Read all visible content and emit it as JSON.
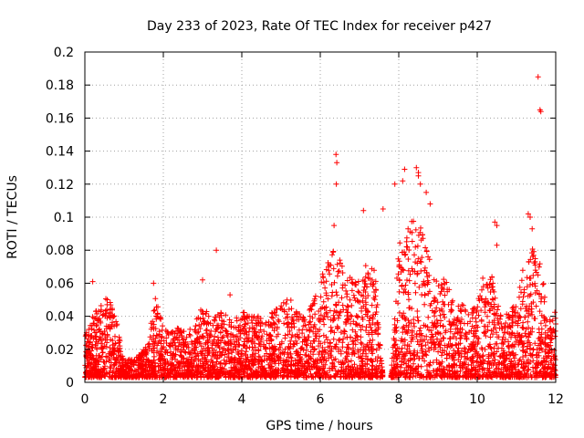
{
  "chart_data": {
    "type": "scatter",
    "title": "Day 233 of 2023, Rate Of TEC Index for receiver p427",
    "xlabel": "GPS time / hours",
    "ylabel": "ROTI / TECUs",
    "xlim": [
      0,
      12
    ],
    "ylim": [
      0,
      0.2
    ],
    "grid": true,
    "marker": "+",
    "color": "#ff0000",
    "x_ticks": [
      0,
      2,
      4,
      6,
      8,
      10,
      12
    ],
    "x_tick_labels": [
      "0",
      "2",
      "4",
      "6",
      "8",
      "10",
      "12"
    ],
    "y_ticks": [
      0,
      0.02,
      0.04,
      0.06,
      0.08,
      0.1,
      0.12,
      0.14,
      0.16,
      0.18,
      0.2
    ],
    "y_tick_labels": [
      "0",
      "0.02",
      "0.04",
      "0.06",
      "0.08",
      "0.1",
      "0.12",
      "0.14",
      "0.16",
      "0.18",
      "0.2"
    ],
    "envelope_hours": [
      0,
      0.2,
      0.4,
      0.6,
      0.8,
      1.0,
      1.2,
      1.4,
      1.6,
      1.8,
      2.0,
      2.2,
      2.4,
      2.6,
      2.8,
      3.0,
      3.2,
      3.4,
      3.6,
      3.8,
      4.0,
      4.2,
      4.4,
      4.6,
      4.8,
      5.0,
      5.2,
      5.4,
      5.6,
      5.8,
      6.0,
      6.2,
      6.4,
      6.6,
      6.8,
      7.0,
      7.2,
      7.4,
      7.6,
      7.8,
      8.0,
      8.2,
      8.4,
      8.6,
      8.8,
      9.0,
      9.2,
      9.4,
      9.6,
      9.8,
      10.0,
      10.2,
      10.4,
      10.6,
      10.8,
      11.0,
      11.2,
      11.4,
      11.6,
      11.8,
      12.0
    ],
    "envelope_roti": [
      0.025,
      0.04,
      0.043,
      0.05,
      0.035,
      0.01,
      0.012,
      0.015,
      0.02,
      0.05,
      0.03,
      0.03,
      0.03,
      0.028,
      0.032,
      0.045,
      0.035,
      0.04,
      0.04,
      0.035,
      0.04,
      0.04,
      0.04,
      0.035,
      0.04,
      0.045,
      0.05,
      0.04,
      0.04,
      0.045,
      0.06,
      0.07,
      0.08,
      0.065,
      0.06,
      0.06,
      0.07,
      0.065,
      0.0,
      0.0,
      0.08,
      0.09,
      0.1,
      0.09,
      0.07,
      0.06,
      0.06,
      0.05,
      0.045,
      0.04,
      0.045,
      0.07,
      0.06,
      0.04,
      0.04,
      0.045,
      0.07,
      0.08,
      0.07,
      0.045,
      0.04
    ],
    "outliers": [
      {
        "x": 0.2,
        "y": 0.061
      },
      {
        "x": 1.75,
        "y": 0.06
      },
      {
        "x": 3.0,
        "y": 0.062
      },
      {
        "x": 3.35,
        "y": 0.08
      },
      {
        "x": 3.7,
        "y": 0.053
      },
      {
        "x": 6.4,
        "y": 0.138
      },
      {
        "x": 6.42,
        "y": 0.133
      },
      {
        "x": 6.41,
        "y": 0.12
      },
      {
        "x": 6.35,
        "y": 0.095
      },
      {
        "x": 7.1,
        "y": 0.104
      },
      {
        "x": 7.9,
        "y": 0.12
      },
      {
        "x": 8.1,
        "y": 0.122
      },
      {
        "x": 8.15,
        "y": 0.129
      },
      {
        "x": 8.45,
        "y": 0.13
      },
      {
        "x": 8.5,
        "y": 0.127
      },
      {
        "x": 8.5,
        "y": 0.125
      },
      {
        "x": 8.55,
        "y": 0.12
      },
      {
        "x": 8.7,
        "y": 0.115
      },
      {
        "x": 8.8,
        "y": 0.108
      },
      {
        "x": 7.6,
        "y": 0.105
      },
      {
        "x": 10.45,
        "y": 0.097
      },
      {
        "x": 10.5,
        "y": 0.095
      },
      {
        "x": 10.5,
        "y": 0.083
      },
      {
        "x": 11.3,
        "y": 0.102
      },
      {
        "x": 11.35,
        "y": 0.1
      },
      {
        "x": 11.4,
        "y": 0.093
      },
      {
        "x": 11.55,
        "y": 0.185
      },
      {
        "x": 11.6,
        "y": 0.165
      },
      {
        "x": 11.62,
        "y": 0.164
      }
    ]
  }
}
